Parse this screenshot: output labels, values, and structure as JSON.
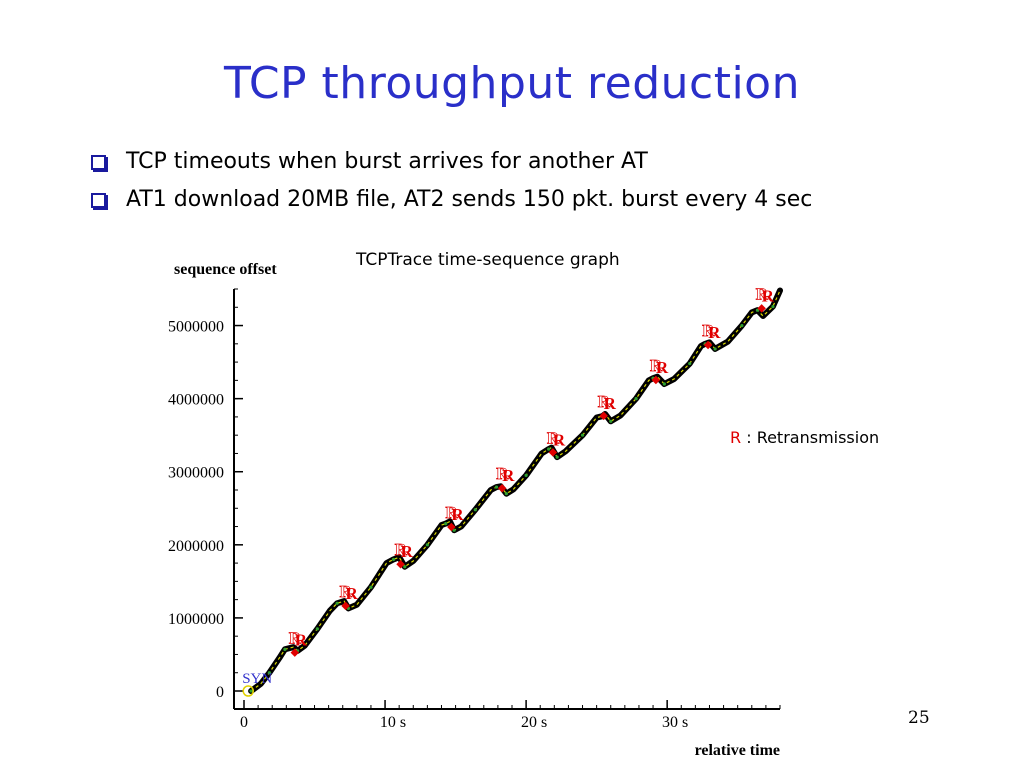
{
  "slide": {
    "title": "TCP throughput reduction",
    "bullets": [
      "TCP timeouts when burst arrives for another AT",
      "AT1 download 20MB file, AT2 sends 150 pkt. burst every 4 sec"
    ],
    "caption": "TCPTrace time-sequence graph",
    "legend_marker": "R",
    "legend_text": " : Retransmission",
    "page_number": "25"
  },
  "colors": {
    "title": "#2a2fc9",
    "bullet": "#1a1a9e",
    "trace": "#000000",
    "trace_highlight": "#d8d800",
    "retransmission": "#e00000",
    "syn": "#3333cc"
  },
  "chart_data": {
    "type": "line",
    "title": "",
    "ylabel": "sequence offset",
    "xlabel": "relative time",
    "xlim": [
      0,
      38
    ],
    "ylim": [
      0,
      5500000
    ],
    "x_ticks": [
      0,
      10,
      20,
      30
    ],
    "x_tick_labels": [
      "0",
      "10 s",
      "20 s",
      "30 s"
    ],
    "y_ticks": [
      0,
      1000000,
      2000000,
      3000000,
      4000000,
      5000000
    ],
    "y_tick_labels": [
      "0",
      "1000000",
      "2000000",
      "3000000",
      "4000000",
      "5000000"
    ],
    "syn_label": "SYN",
    "syn_point": [
      0.3,
      0
    ],
    "series": [
      {
        "x": [
          0.5,
          1.2,
          1.8,
          2.5,
          2.9,
          3.5,
          3.8,
          4.3,
          5.2,
          6.1,
          6.6,
          7.1,
          7.4,
          8.0,
          9.0,
          10.1,
          10.6,
          11.0,
          11.4,
          12.0,
          13.0,
          14.0,
          14.3,
          14.6,
          14.9,
          15.4,
          16.4,
          17.5,
          17.9,
          18.2,
          18.6,
          19.1,
          20.0,
          21.1,
          21.6,
          21.8,
          22.2,
          22.8,
          24.0,
          25.0,
          25.4,
          25.6,
          26.0,
          26.7,
          27.8,
          28.7,
          29.0,
          29.3,
          29.8,
          30.5,
          31.6,
          32.4,
          32.7,
          33.0,
          33.4,
          34.3,
          35.3,
          36.0,
          36.4,
          36.8,
          37.5,
          38.0
        ],
        "y": [
          0,
          100000,
          250000,
          450000,
          570000,
          600000,
          550000,
          620000,
          850000,
          1100000,
          1200000,
          1230000,
          1130000,
          1180000,
          1420000,
          1750000,
          1800000,
          1830000,
          1700000,
          1780000,
          2000000,
          2270000,
          2290000,
          2320000,
          2200000,
          2250000,
          2480000,
          2750000,
          2790000,
          2800000,
          2700000,
          2760000,
          2950000,
          3250000,
          3310000,
          3330000,
          3200000,
          3280000,
          3500000,
          3740000,
          3760000,
          3790000,
          3690000,
          3770000,
          4000000,
          4250000,
          4280000,
          4300000,
          4200000,
          4270000,
          4480000,
          4720000,
          4750000,
          4770000,
          4680000,
          4780000,
          5000000,
          5180000,
          5210000,
          5130000,
          5260000,
          5480000
        ]
      }
    ],
    "retransmissions": [
      {
        "x": 3.6,
        "y": 620000,
        "label": "R"
      },
      {
        "x": 7.2,
        "y": 1260000,
        "label": "R"
      },
      {
        "x": 11.1,
        "y": 1830000,
        "label": "R"
      },
      {
        "x": 14.7,
        "y": 2340000,
        "label": "R"
      },
      {
        "x": 18.3,
        "y": 2870000,
        "label": "R"
      },
      {
        "x": 21.9,
        "y": 3360000,
        "label": "R"
      },
      {
        "x": 25.5,
        "y": 3860000,
        "label": "R"
      },
      {
        "x": 29.2,
        "y": 4350000,
        "label": "R"
      },
      {
        "x": 32.9,
        "y": 4830000,
        "label": "R"
      },
      {
        "x": 36.7,
        "y": 5330000,
        "label": "R"
      }
    ]
  }
}
